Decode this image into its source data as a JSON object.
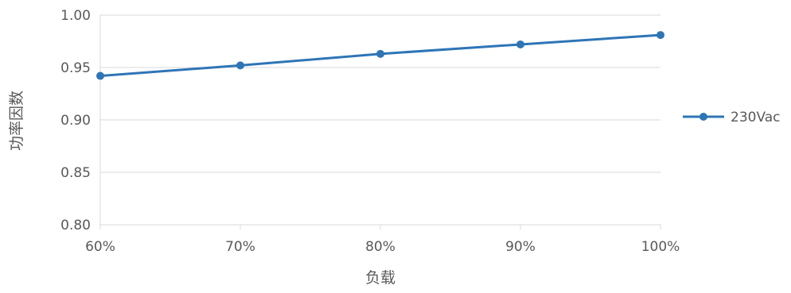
{
  "chart_data": {
    "type": "line",
    "title": "",
    "xlabel": "负载",
    "ylabel": "功率因数",
    "categories": [
      "60%",
      "70%",
      "80%",
      "90%",
      "100%"
    ],
    "ylim": [
      0.8,
      1.0
    ],
    "yticks": [
      "0.80",
      "0.85",
      "0.90",
      "0.95",
      "1.00"
    ],
    "grid": true,
    "legend_position": "right",
    "series": [
      {
        "name": "230Vac",
        "color": "#2e75b6",
        "values": [
          0.942,
          0.952,
          0.963,
          0.972,
          0.981
        ]
      }
    ]
  }
}
